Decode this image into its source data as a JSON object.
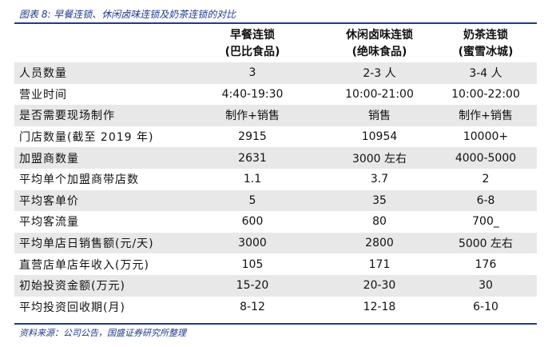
{
  "figure": {
    "title": "图表 8:  早餐连锁、休闲卤味连锁及奶茶连锁的对比",
    "source": "资料来源：公司公告，国盛证券研究所整理"
  },
  "table": {
    "headers": [
      {
        "line1": "",
        "line2": ""
      },
      {
        "line1": "早餐连锁",
        "line2": "(巴比食品)"
      },
      {
        "line1": "休闲卤味连锁",
        "line2": "(绝味食品)"
      },
      {
        "line1": "奶茶连锁",
        "line2": "(蜜雪冰城)"
      }
    ],
    "rows": [
      [
        "人员数量",
        "3",
        "2-3 人",
        "3-4 人"
      ],
      [
        "营业时间",
        "4:40-19:30",
        "10:00-21:00",
        "10:00-22:00"
      ],
      [
        "是否需要现场制作",
        "制作+销售",
        "销售",
        "制作+销售"
      ],
      [
        "门店数量(截至 2019 年)",
        "2915",
        "10954",
        "10000+"
      ],
      [
        "加盟商数量",
        "2631",
        "3000 左右",
        "4000-5000"
      ],
      [
        "平均单个加盟商带店数",
        "1.1",
        "3.7",
        "2"
      ],
      [
        "平均客单价",
        "5",
        "35",
        "6-8"
      ],
      [
        "平均客流量",
        "600",
        "80",
        "700_"
      ],
      [
        "平均单店日销售额(元/天)",
        "3000",
        "2800",
        "5000 左右"
      ],
      [
        "直营店单店年收入(万元)",
        "105",
        "171",
        "176"
      ],
      [
        "初始投资金额(万元)",
        "15-20",
        "20-30",
        "30"
      ],
      [
        "平均投资回收期(月)",
        "8-12",
        "12-18",
        "6-10"
      ]
    ]
  },
  "colors": {
    "accent": "#1f3a8a",
    "row_shade": "#e8e8e8"
  }
}
